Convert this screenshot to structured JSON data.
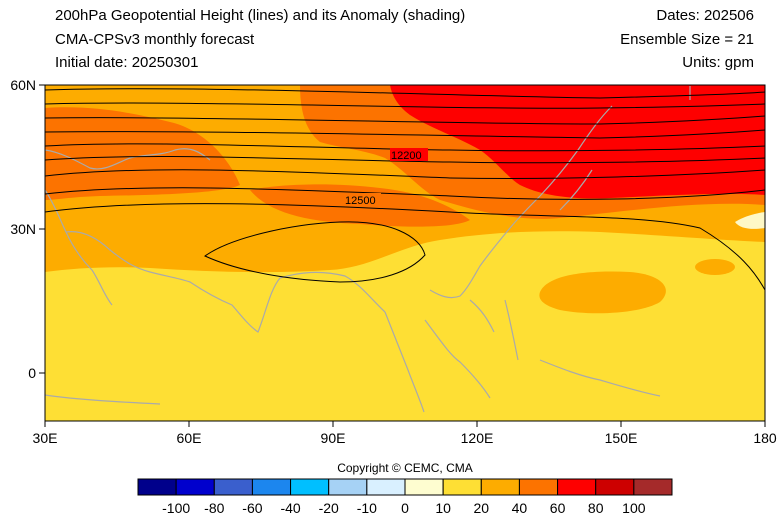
{
  "header": {
    "title": "200hPa Geopotential Height (lines) and its Anomaly (shading)",
    "subtitle": "CMA-CPSv3 monthly forecast",
    "initial_date": "Initial date: 20250301",
    "dates": "Dates: 202506",
    "ensemble": "Ensemble Size = 21",
    "units": "Units: gpm"
  },
  "map": {
    "lon_range": [
      30,
      180
    ],
    "lat_range": [
      -10,
      60
    ],
    "lon_ticks": [
      "30E",
      "60E",
      "90E",
      "120E",
      "150E",
      "180"
    ],
    "lat_ticks": [
      "60N",
      "30N",
      "0"
    ],
    "contour_labels": [
      "12200",
      "12500"
    ],
    "colors": {
      "c0_10": "#fef8c6",
      "c10_20": "#fedf34",
      "c20_40": "#fdac00",
      "c40_60": "#fc7300",
      "c60_80": "#fe0000",
      "coast": "#aaaaaa"
    }
  },
  "copyright": "Copyright © CEMC, CMA",
  "colorbar": {
    "labels": [
      "-100",
      "-80",
      "-60",
      "-40",
      "-20",
      "-10",
      "0",
      "10",
      "20",
      "40",
      "60",
      "80",
      "100"
    ],
    "colors": [
      "#00008b",
      "#0000cd",
      "#3a5fcd",
      "#1c86ee",
      "#00bfff",
      "#a6d2f5",
      "#d9f0ff",
      "#fefdd0",
      "#fedf34",
      "#fdac00",
      "#fc7300",
      "#fe0000",
      "#cd0000",
      "#a52a2a"
    ]
  }
}
